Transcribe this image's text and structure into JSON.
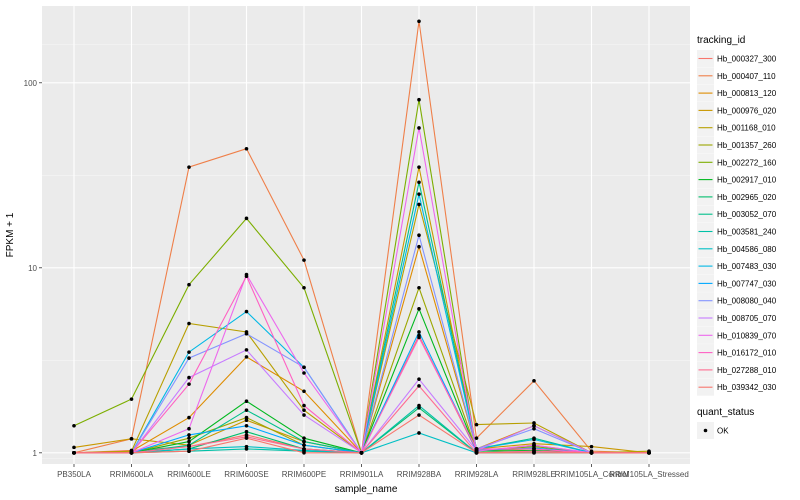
{
  "chart_data": {
    "type": "line",
    "xlabel": "sample_name",
    "ylabel": "FPKM + 1",
    "y_scale": "log10",
    "ylim": [
      0.87,
      260
    ],
    "y_ticks": [
      {
        "value": 1,
        "label": "1"
      },
      {
        "value": 10,
        "label": "10"
      },
      {
        "value": 100,
        "label": "100"
      }
    ],
    "categories": [
      "PB350LA",
      "RRIM600LA",
      "RRIM600LE",
      "RRIM600SE",
      "RRIM600PE",
      "RRIM901LA",
      "RRIM928BA",
      "RRIM928LA",
      "RRIM928LE",
      "RRIM105LA_Control",
      "RRIM105LA_Stressed"
    ],
    "grid": true,
    "legend": {
      "title": "tracking_id",
      "placement": "right",
      "quant_status_title": "quant_status",
      "quant_status_entry": "OK"
    },
    "series": [
      {
        "name": "Hb_000327_300",
        "color": "#F8766D",
        "values": [
          1.0,
          1.03,
          1.08,
          1.25,
          1.05,
          1.0,
          4.3,
          1.02,
          1.1,
          1.0,
          1.0
        ]
      },
      {
        "name": "Hb_000407_110",
        "color": "#EF7F49",
        "values": [
          1.0,
          1.19,
          35,
          44,
          11,
          1.0,
          215,
          1.2,
          2.45,
          1.02,
          1.0
        ]
      },
      {
        "name": "Hb_000813_120",
        "color": "#DE8C00",
        "values": [
          1.0,
          1.02,
          1.55,
          3.3,
          2.15,
          1.0,
          13,
          1.05,
          1.4,
          1.0,
          1.0
        ]
      },
      {
        "name": "Hb_000976_020",
        "color": "#C99800",
        "values": [
          1.07,
          1.19,
          1.1,
          1.5,
          1.15,
          1.0,
          35,
          1.05,
          1.12,
          1.08,
          1.0
        ]
      },
      {
        "name": "Hb_001168_010",
        "color": "#B79F00",
        "values": [
          1.0,
          1.02,
          5.0,
          4.5,
          1.7,
          1.0,
          22,
          1.42,
          1.45,
          1.0,
          1.02
        ]
      },
      {
        "name": "Hb_001357_260",
        "color": "#9CA700",
        "values": [
          1.0,
          1.0,
          1.2,
          1.55,
          1.1,
          1.0,
          7.8,
          1.03,
          1.05,
          1.0,
          1.0
        ]
      },
      {
        "name": "Hb_002272_160",
        "color": "#7CAE00",
        "values": [
          1.4,
          1.95,
          8.1,
          18.5,
          7.8,
          1.0,
          81,
          1.02,
          1.08,
          1.0,
          1.0
        ]
      },
      {
        "name": "Hb_002917_010",
        "color": "#00B81F",
        "values": [
          1.0,
          1.0,
          1.15,
          1.9,
          1.2,
          1.0,
          6.0,
          1.02,
          1.03,
          1.0,
          1.0
        ]
      },
      {
        "name": "Hb_002965_020",
        "color": "#00BE6C",
        "values": [
          1.0,
          1.0,
          1.05,
          1.3,
          1.05,
          1.0,
          1.75,
          1.0,
          1.02,
          1.0,
          1.0
        ]
      },
      {
        "name": "Hb_003052_070",
        "color": "#00C08B",
        "values": [
          1.0,
          1.0,
          1.1,
          1.7,
          1.15,
          1.0,
          29,
          1.05,
          1.2,
          1.0,
          1.0
        ]
      },
      {
        "name": "Hb_003581_240",
        "color": "#00C1A7",
        "values": [
          1.0,
          1.0,
          1.02,
          1.05,
          1.02,
          1.0,
          1.8,
          1.0,
          1.0,
          1.0,
          1.0
        ]
      },
      {
        "name": "Hb_004586_080",
        "color": "#00BFC4",
        "values": [
          1.0,
          1.0,
          1.05,
          1.08,
          1.03,
          1.0,
          1.28,
          1.0,
          1.0,
          1.0,
          1.0
        ]
      },
      {
        "name": "Hb_007483_030",
        "color": "#00B8E5",
        "values": [
          1.0,
          1.0,
          3.5,
          5.8,
          2.9,
          1.0,
          25,
          1.05,
          1.18,
          1.0,
          1.0
        ]
      },
      {
        "name": "Hb_007747_030",
        "color": "#00A9FF",
        "values": [
          1.0,
          1.0,
          1.25,
          1.4,
          1.1,
          1.0,
          4.5,
          1.03,
          1.06,
          1.0,
          1.0
        ]
      },
      {
        "name": "Hb_008080_040",
        "color": "#8494FF",
        "values": [
          1.0,
          1.0,
          3.25,
          4.4,
          2.9,
          1.0,
          15,
          1.05,
          1.35,
          1.0,
          1.0
        ]
      },
      {
        "name": "Hb_008705_070",
        "color": "#C77CFF",
        "values": [
          1.0,
          1.0,
          2.55,
          3.6,
          1.6,
          1.0,
          2.5,
          1.03,
          1.4,
          1.0,
          1.0
        ]
      },
      {
        "name": "Hb_010839_070",
        "color": "#ED68ED",
        "values": [
          1.0,
          1.0,
          1.35,
          9.2,
          2.7,
          1.0,
          57,
          1.02,
          1.1,
          1.0,
          1.0
        ]
      },
      {
        "name": "Hb_016172_010",
        "color": "#FF61C3",
        "values": [
          1.0,
          1.0,
          2.35,
          9.0,
          1.8,
          1.0,
          4.2,
          1.05,
          1.05,
          1.0,
          1.0
        ]
      },
      {
        "name": "Hb_027288_010",
        "color": "#FF6C91",
        "values": [
          1.0,
          1.0,
          1.08,
          1.22,
          1.05,
          1.0,
          2.3,
          1.0,
          1.02,
          1.0,
          1.0
        ]
      },
      {
        "name": "Hb_039342_030",
        "color": "#F8766D",
        "values": [
          1.0,
          1.0,
          1.02,
          1.2,
          1.0,
          1.0,
          1.6,
          1.0,
          1.0,
          1.0,
          1.0
        ]
      }
    ]
  }
}
